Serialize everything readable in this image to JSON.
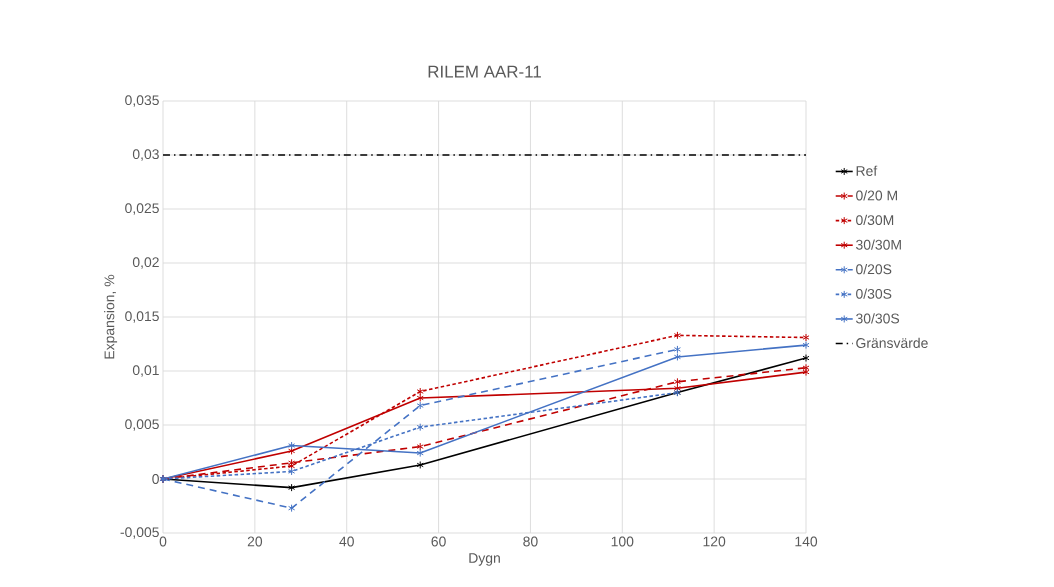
{
  "chart_data": {
    "type": "line",
    "title": "RILEM AAR-11",
    "xlabel": "Dygn",
    "ylabel": "Expansion, %",
    "x": [
      0,
      28,
      56,
      112,
      140
    ],
    "series": [
      {
        "name": "Ref",
        "color": "#000000",
        "line_style": "solid",
        "values": [
          0,
          -0.0008,
          0.0013,
          0.008,
          0.0112
        ]
      },
      {
        "name": "0/20 M",
        "color": "#c00000",
        "line_style": "dashed",
        "values": [
          0,
          0.0015,
          0.003,
          0.009,
          0.0103
        ]
      },
      {
        "name": "0/30M",
        "color": "#c00000",
        "line_style": "dotted",
        "values": [
          0,
          0.0012,
          0.0081,
          0.0133,
          0.0131
        ]
      },
      {
        "name": "30/30M",
        "color": "#c00000",
        "line_style": "solid",
        "values": [
          0,
          0.0026,
          0.0075,
          0.0084,
          0.0099
        ]
      },
      {
        "name": "0/20S",
        "color": "#4472c4",
        "line_style": "dashed",
        "values": [
          0,
          -0.0027,
          0.0068,
          0.012,
          null
        ]
      },
      {
        "name": "0/30S",
        "color": "#4472c4",
        "line_style": "dotted",
        "values": [
          0,
          0.0007,
          0.0048,
          0.008,
          null
        ]
      },
      {
        "name": "30/30S",
        "color": "#4472c4",
        "line_style": "solid",
        "values": [
          0,
          0.0031,
          0.0024,
          0.0113,
          0.0124
        ]
      }
    ],
    "ref_lines": [
      {
        "axis": "y",
        "value": 0.03,
        "label": "Gränsvärde",
        "color": "#000000",
        "line_style": "dashdot"
      }
    ],
    "xlim": [
      0,
      140
    ],
    "xticks": [
      0,
      20,
      40,
      60,
      80,
      100,
      120,
      140
    ],
    "ylim": [
      -0.005,
      0.035
    ],
    "yticks": [
      {
        "value": -0.005,
        "label": "-0,005"
      },
      {
        "value": 0,
        "label": "0"
      },
      {
        "value": 0.005,
        "label": "0,005"
      },
      {
        "value": 0.01,
        "label": "0,01"
      },
      {
        "value": 0.015,
        "label": "0,015"
      },
      {
        "value": 0.02,
        "label": "0,02"
      },
      {
        "value": 0.025,
        "label": "0,025"
      },
      {
        "value": 0.03,
        "label": "0,03"
      },
      {
        "value": 0.035,
        "label": "0,035"
      }
    ],
    "grid": true,
    "legend": "right",
    "marker": "cross"
  }
}
